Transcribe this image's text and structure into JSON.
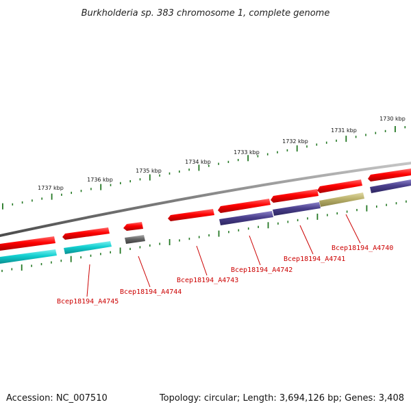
{
  "title": "Burkholderia sp. 383 chromosome 1, complete genome",
  "footer": {
    "accession": "Accession: NC_007510",
    "summary": "Topology: circular; Length: 3,694,126 bp; Genes: 3,408"
  },
  "ruler": {
    "ticks": [
      {
        "label": "1737 kbp"
      },
      {
        "label": "1736 kbp"
      },
      {
        "label": "1735 kbp"
      },
      {
        "label": "1734 kbp"
      },
      {
        "label": "1733 kbp"
      },
      {
        "label": "1732 kbp"
      },
      {
        "label": "1731 kbp"
      },
      {
        "label": "1730 kbp"
      }
    ]
  },
  "colors": {
    "backbone": "#7f7f7f",
    "forward_gene": "#ee0000",
    "reverse_gene_cyan": "#11cccc",
    "reverse_gene_purple": "#4a3f8c",
    "reverse_gene_gray": "#666666",
    "reverse_gene_khaki": "#b9b06a",
    "tick_color": "#227722",
    "label_color": "#cc0000"
  },
  "gene_labels": [
    {
      "text": "Bcep18194_A4745"
    },
    {
      "text": "Bcep18194_A4744"
    },
    {
      "text": "Bcep18194_A4743"
    },
    {
      "text": "Bcep18194_A4742"
    },
    {
      "text": "Bcep18194_A4741"
    },
    {
      "text": "Bcep18194_A4740"
    }
  ]
}
